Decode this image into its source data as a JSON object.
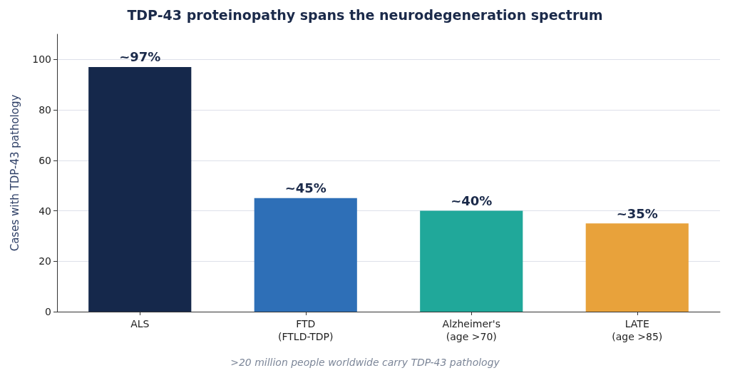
{
  "chart_data": {
    "type": "bar",
    "title": "TDP-43 proteinopathy spans the neurodegeneration spectrum",
    "ylabel": "Cases with TDP-43 pathology",
    "categories": [
      "ALS",
      "FTD\n(FTLD-TDP)",
      "Alzheimer's\n(age >70)",
      "LATE\n(age >85)"
    ],
    "values": [
      97,
      45,
      40,
      35
    ],
    "colors": [
      "#15284b",
      "#2e6fb7",
      "#20a89a",
      "#e8a23b"
    ],
    "value_labels": [
      "~97%",
      "~45%",
      "~40%",
      "~35%"
    ],
    "ylim": [
      0,
      110
    ],
    "yticks": [
      0,
      20,
      40,
      60,
      80,
      100
    ],
    "grid": "y",
    "annotations": [
      ">20 million people worldwide carry TDP-43 pathology"
    ]
  }
}
